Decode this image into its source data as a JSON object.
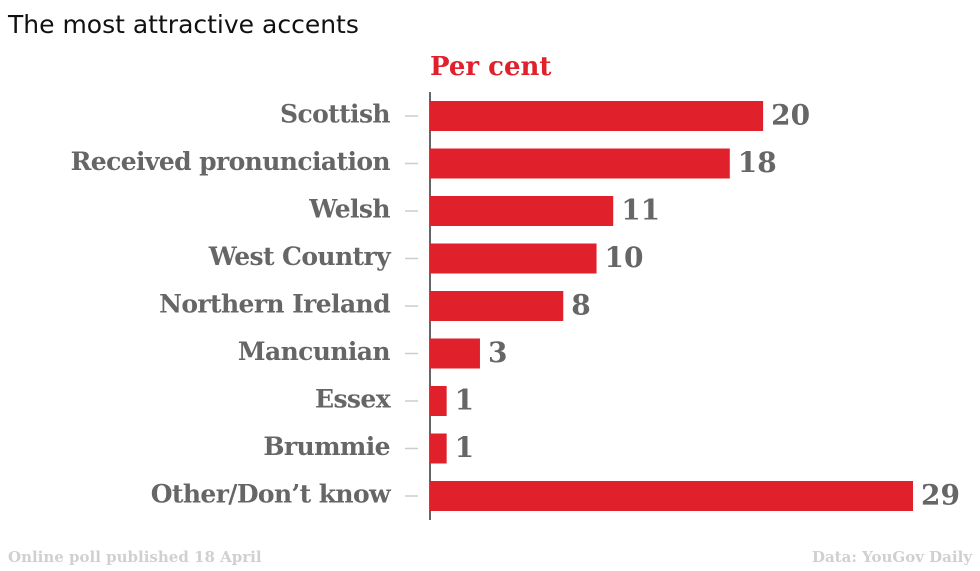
{
  "chart_data": {
    "type": "bar",
    "orientation": "horizontal",
    "title": "The most attractive accents",
    "x_label": "Per cent",
    "categories": [
      "Scottish",
      "Received pronunciation",
      "Welsh",
      "West Country",
      "Northern Ireland",
      "Mancunian",
      "Essex",
      "Brummie",
      "Other/Don’t know"
    ],
    "values": [
      20,
      18,
      11,
      10,
      8,
      3,
      1,
      1,
      29
    ],
    "color": "#e0202a",
    "footer_left": "Online poll published 18 April",
    "footer_right": "Data: YouGov Daily"
  }
}
